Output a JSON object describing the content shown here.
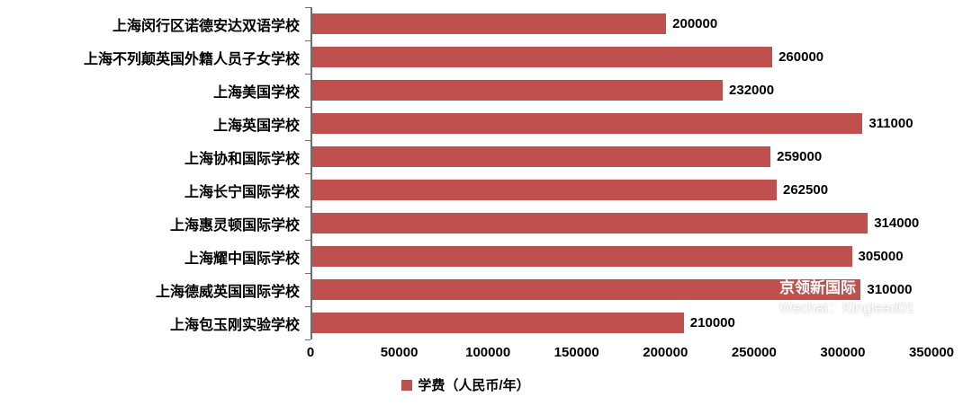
{
  "chart_data": {
    "type": "bar",
    "orientation": "horizontal",
    "categories": [
      "上海闵行区诺德安达双语学校",
      "上海不列颠英国外籍人员子女学校",
      "上海美国学校",
      "上海英国学校",
      "上海协和国际学校",
      "上海长宁国际学校",
      "上海惠灵顿国际学校",
      "上海耀中国际学校",
      "上海德威英国国际学校",
      "上海包玉刚实验学校"
    ],
    "values": [
      200000,
      260000,
      232000,
      311000,
      259000,
      262500,
      314000,
      305000,
      310000,
      210000
    ],
    "xlim": [
      0,
      350000
    ],
    "x_ticks": [
      0,
      50000,
      100000,
      150000,
      200000,
      250000,
      300000,
      350000
    ],
    "bar_color": "#c0504d",
    "axis_line_color": "#6e6e6e",
    "grid": false,
    "legend": "学费（人民币/年）",
    "legend_position": "bottom",
    "value_labels_shown": true
  },
  "watermark": {
    "line1": "京领新国际",
    "line2": "Wechat：Kinglead01"
  }
}
